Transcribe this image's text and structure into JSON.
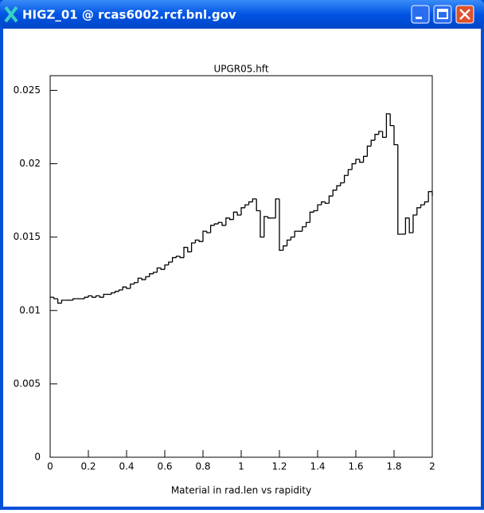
{
  "window": {
    "title": "HIGZ_01 @  rcas6002.rcf.bnl.gov"
  },
  "chart_data": {
    "type": "histogram",
    "title": "UPGR05.hft",
    "x_label": "Material in rad.len vs rapidity",
    "color": "#000000",
    "bins": [
      0,
      0.02,
      0.04,
      0.06,
      0.08,
      0.1,
      0.12,
      0.14,
      0.16,
      0.18,
      0.2,
      0.22,
      0.24,
      0.26,
      0.28,
      0.3,
      0.32,
      0.34,
      0.36,
      0.38,
      0.4,
      0.42,
      0.44,
      0.46,
      0.48,
      0.5,
      0.52,
      0.54,
      0.56,
      0.58,
      0.6,
      0.62,
      0.64,
      0.66,
      0.68,
      0.7,
      0.72,
      0.74,
      0.76,
      0.78,
      0.8,
      0.82,
      0.84,
      0.86,
      0.88,
      0.9,
      0.92,
      0.94,
      0.96,
      0.98,
      1,
      1.02,
      1.04,
      1.06,
      1.08,
      1.1,
      1.12,
      1.14,
      1.16,
      1.18,
      1.2,
      1.22,
      1.24,
      1.26,
      1.28,
      1.3,
      1.32,
      1.34,
      1.36,
      1.38,
      1.4,
      1.42,
      1.44,
      1.46,
      1.48,
      1.5,
      1.52,
      1.54,
      1.56,
      1.58,
      1.6,
      1.62,
      1.64,
      1.66,
      1.68,
      1.7,
      1.72,
      1.74,
      1.76,
      1.78,
      1.8,
      1.82,
      1.84,
      1.86,
      1.88,
      1.9,
      1.92,
      1.94,
      1.96,
      1.98,
      2
    ],
    "values": [
      0.0109,
      0.0108,
      0.0105,
      0.0107,
      0.0107,
      0.0107,
      0.0108,
      0.0108,
      0.0108,
      0.0109,
      0.011,
      0.0109,
      0.011,
      0.0109,
      0.0111,
      0.0111,
      0.0112,
      0.0113,
      0.0114,
      0.0116,
      0.0115,
      0.0118,
      0.0119,
      0.0122,
      0.0121,
      0.0123,
      0.0125,
      0.0126,
      0.0129,
      0.0128,
      0.0131,
      0.0133,
      0.0136,
      0.0137,
      0.0136,
      0.0143,
      0.014,
      0.0146,
      0.0148,
      0.0147,
      0.0154,
      0.0153,
      0.0158,
      0.0159,
      0.016,
      0.0158,
      0.0163,
      0.0162,
      0.0167,
      0.0165,
      0.017,
      0.0172,
      0.0174,
      0.0176,
      0.0168,
      0.015,
      0.0164,
      0.0163,
      0.0163,
      0.0176,
      0.0141,
      0.0144,
      0.0148,
      0.015,
      0.0154,
      0.0154,
      0.0157,
      0.016,
      0.0167,
      0.0168,
      0.0172,
      0.0174,
      0.0173,
      0.0178,
      0.0182,
      0.0185,
      0.0187,
      0.0192,
      0.0196,
      0.02,
      0.0203,
      0.0201,
      0.0205,
      0.0212,
      0.0216,
      0.022,
      0.0222,
      0.0218,
      0.0234,
      0.0226,
      0.0213,
      0.0152,
      0.0152,
      0.0163,
      0.0153,
      0.0165,
      0.017,
      0.0172,
      0.0174,
      0.0181,
      0.0178
    ],
    "xlim": [
      0,
      2
    ],
    "xticks": [
      0,
      0.2,
      0.4,
      0.6,
      0.8,
      1,
      1.2,
      1.4,
      1.6,
      1.8,
      2
    ],
    "ylim": [
      0,
      0.026
    ],
    "yticks": [
      0,
      0.005,
      0.01,
      0.015,
      0.02,
      0.025
    ]
  }
}
